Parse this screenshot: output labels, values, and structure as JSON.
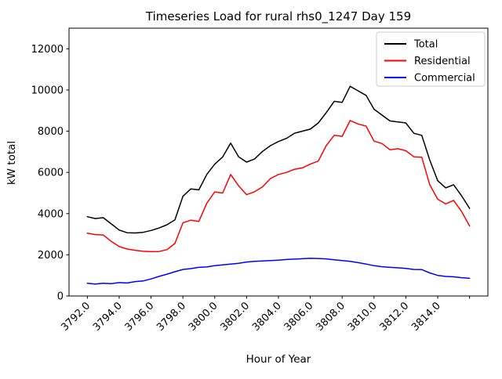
{
  "window": {
    "background": "#ffffff"
  },
  "chart_data": {
    "type": "line",
    "title": "Timeseries Load for rural rhs0_1247  Day 159",
    "xlabel": "Hour of Year",
    "ylabel": "kW total",
    "grid": false,
    "legend_position": "upper right",
    "xlim": [
      3790.85,
      3817.15
    ],
    "ylim": [
      0,
      13000
    ],
    "y_ticks": [
      {
        "value": 0,
        "label": "0"
      },
      {
        "value": 2000,
        "label": "2000"
      },
      {
        "value": 4000,
        "label": "4000"
      },
      {
        "value": 6000,
        "label": "6000"
      },
      {
        "value": 8000,
        "label": "8000"
      },
      {
        "value": 10000,
        "label": "10000"
      },
      {
        "value": 12000,
        "label": "12000"
      }
    ],
    "x_ticks": [
      {
        "value": 3792,
        "label": "3792.0"
      },
      {
        "value": 3794,
        "label": "3794.0"
      },
      {
        "value": 3796,
        "label": "3796.0"
      },
      {
        "value": 3798,
        "label": "3798.0"
      },
      {
        "value": 3800,
        "label": "3800.0"
      },
      {
        "value": 3802,
        "label": "3802.0"
      },
      {
        "value": 3804,
        "label": "3804.0"
      },
      {
        "value": 3806,
        "label": "3806.0"
      },
      {
        "value": 3808,
        "label": "3808.0"
      },
      {
        "value": 3810,
        "label": "3810.0"
      },
      {
        "value": 3812,
        "label": "3812.0"
      },
      {
        "value": 3814,
        "label": "3814.0"
      },
      {
        "value": 3816,
        "label": ""
      }
    ],
    "x": [
      3792,
      3792.5,
      3793,
      3793.5,
      3794,
      3794.5,
      3795,
      3795.5,
      3796,
      3796.5,
      3797,
      3797.5,
      3798,
      3798.5,
      3799,
      3799.5,
      3800,
      3800.5,
      3801,
      3801.5,
      3802,
      3802.5,
      3803,
      3803.5,
      3804,
      3804.5,
      3805,
      3805.5,
      3806,
      3806.5,
      3807,
      3807.5,
      3808,
      3808.5,
      3809,
      3809.5,
      3810,
      3810.5,
      3811,
      3811.5,
      3812,
      3812.5,
      3813,
      3813.5,
      3814,
      3814.5,
      3815,
      3815.5,
      3816
    ],
    "series": [
      {
        "name": "Total",
        "color": "#000000",
        "values": [
          3850,
          3760,
          3800,
          3500,
          3200,
          3070,
          3060,
          3090,
          3180,
          3300,
          3460,
          3700,
          4840,
          5200,
          5150,
          5900,
          6400,
          6750,
          7420,
          6760,
          6500,
          6650,
          7020,
          7300,
          7500,
          7650,
          7900,
          8000,
          8100,
          8400,
          8900,
          9450,
          9400,
          10180,
          9960,
          9740,
          9070,
          8780,
          8500,
          8450,
          8400,
          7900,
          7800,
          6600,
          5600,
          5250,
          5400,
          4860,
          4250
        ]
      },
      {
        "name": "Residential",
        "color": "#ff0000",
        "values": [
          3050,
          2980,
          2960,
          2650,
          2400,
          2280,
          2220,
          2170,
          2150,
          2160,
          2250,
          2550,
          3550,
          3680,
          3620,
          4500,
          5050,
          5000,
          5900,
          5350,
          4920,
          5060,
          5300,
          5700,
          5900,
          6000,
          6150,
          6220,
          6400,
          6550,
          7300,
          7800,
          7750,
          8520,
          8350,
          8250,
          7520,
          7400,
          7100,
          7150,
          7050,
          6760,
          6740,
          5400,
          4700,
          4470,
          4640,
          4100,
          3400
        ]
      },
      {
        "name": "Commercial",
        "color": "#0000ff",
        "values": [
          620,
          580,
          620,
          600,
          650,
          630,
          700,
          730,
          830,
          950,
          1060,
          1180,
          1290,
          1330,
          1390,
          1410,
          1470,
          1510,
          1550,
          1590,
          1650,
          1680,
          1700,
          1720,
          1740,
          1770,
          1790,
          1810,
          1830,
          1820,
          1800,
          1760,
          1720,
          1680,
          1620,
          1550,
          1470,
          1420,
          1390,
          1370,
          1340,
          1290,
          1280,
          1120,
          1000,
          950,
          930,
          890,
          860
        ]
      }
    ]
  },
  "layout_colors": {
    "axis": "#000000",
    "legend_border": "#cccccc",
    "legend_bg": "#ffffff"
  }
}
